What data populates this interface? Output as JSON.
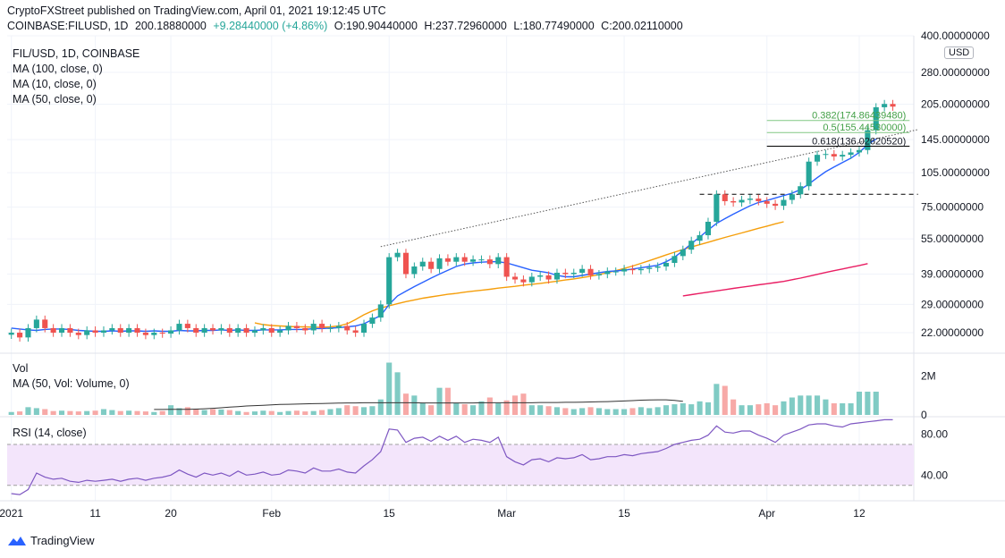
{
  "header": {
    "published": "CryptoFXStreet published on TradingView.com, April 01, 2021 19:12:45 UTC",
    "symbol_line": "COINBASE:FILUSD, 1D",
    "last": "200.18880000",
    "change": "+9.28440000 (+4.86%)",
    "open": "O:190.90440000",
    "high": "H:237.72960000",
    "low": "L:180.77490000",
    "close": "C:200.02110000"
  },
  "legend": {
    "title": "FIL/USD, 1D, COINBASE",
    "ma100": "MA (100, close, 0)",
    "ma10": "MA (10, close, 0)",
    "ma50": "MA (50, close, 0)",
    "vol": "Vol",
    "vol_ma": "MA (50, Vol: Volume, 0)",
    "rsi": "RSI (14, close)"
  },
  "currency": "USD",
  "brand": "TradingView",
  "colors": {
    "up": "#26a69a",
    "down": "#ef5350",
    "ma10": "#2962ff",
    "ma50": "#f59e0b",
    "ma100": "#e91e63",
    "rsi": "#7e57c2",
    "fib": "#81c784"
  },
  "chart_data": {
    "type": "candlestick",
    "title": "FIL/USD, 1D, COINBASE",
    "scale": "log",
    "ylim": [
      18,
      400
    ],
    "y_ticks": [
      "400.00000000",
      "280.00000000",
      "205.00000000",
      "145.00000000",
      "105.00000000",
      "75.00000000",
      "55.00000000",
      "39.00000000",
      "29.00000000",
      "22.00000000"
    ],
    "y_tick_values": [
      400,
      280,
      205,
      145,
      105,
      75,
      55,
      39,
      29,
      22
    ],
    "x_labels": [
      "2021",
      "11",
      "20",
      "Feb",
      "15",
      "Mar",
      "15",
      "Apr",
      "12"
    ],
    "x_label_days": [
      0,
      10,
      19,
      31,
      45,
      59,
      73,
      90,
      101
    ],
    "num_days": 108,
    "closes": [
      22,
      21,
      23,
      25,
      23,
      22,
      23,
      22,
      21.5,
      22.5,
      22,
      22.5,
      23,
      22,
      23,
      22,
      21.5,
      22,
      21.8,
      22.5,
      24,
      23,
      22,
      23,
      22.5,
      23,
      22,
      23,
      22,
      22.5,
      23,
      22,
      22.5,
      23.5,
      23,
      22.5,
      24,
      23,
      23,
      23.5,
      22.5,
      22,
      24,
      25.5,
      29,
      46,
      48,
      39,
      42,
      44,
      41,
      45.5,
      44,
      46,
      44,
      45,
      45,
      43,
      46,
      38,
      37,
      36,
      38,
      38.5,
      37,
      39.5,
      39,
      39.5,
      41,
      38.5,
      39,
      40,
      40,
      41,
      40.5,
      41,
      41.5,
      42,
      43.5,
      46.5,
      49.5,
      54,
      57,
      65,
      85,
      79.5,
      78.5,
      80.5,
      81.5,
      79.5,
      77.5,
      76,
      80.5,
      85,
      92,
      117,
      125,
      126,
      123,
      125,
      128,
      131,
      159,
      199,
      205.5,
      200.2
    ],
    "ma10_from_day": 0,
    "ma10": [
      23,
      22.8,
      22.6,
      22.5,
      22.7,
      22.8,
      22.8,
      22.7,
      22.5,
      22.4,
      22.3,
      22.3,
      22.4,
      22.3,
      22.4,
      22.4,
      22.3,
      22.4,
      22.3,
      22.3,
      22.5,
      22.4,
      22.4,
      22.5,
      22.5,
      22.6,
      22.5,
      22.6,
      22.5,
      22.5,
      22.6,
      22.6,
      22.6,
      22.7,
      22.7,
      22.7,
      22.9,
      22.9,
      23,
      23.1,
      23.3,
      23.5,
      24,
      25,
      26,
      29,
      31.5,
      33,
      34.5,
      36,
      37.5,
      39,
      40.5,
      42,
      43,
      43.5,
      43.8,
      44,
      44,
      43.5,
      42.5,
      41.5,
      40.5,
      40,
      39.5,
      38.5,
      38,
      38,
      38.5,
      39,
      39.5,
      40,
      40.2,
      40.5,
      41,
      41.5,
      42,
      42.5,
      44,
      46,
      49,
      52.5,
      56,
      60,
      64,
      67,
      70,
      73,
      76,
      78.5,
      80,
      82,
      84,
      86,
      89,
      94,
      100,
      106,
      111,
      116,
      121,
      128,
      138,
      146
    ],
    "ma50_from_day": 29,
    "ma50": [
      24.2,
      23.8,
      23.6,
      23.5,
      23.4,
      23.3,
      23.3,
      23.2,
      23.2,
      23.3,
      23.5,
      24,
      25,
      26.2,
      27.2,
      28,
      28.6,
      29.2,
      29.8,
      30.3,
      30.8,
      31.2,
      31.6,
      32,
      32.3,
      32.7,
      33,
      33.3,
      33.6,
      34,
      34.3,
      34.6,
      35,
      35.3,
      35.6,
      36,
      36.4,
      36.8,
      37.2,
      37.7,
      38.2,
      38.8,
      39.5,
      40.3,
      41.2,
      42.2,
      43.3,
      44.5,
      45.7,
      47,
      48.3,
      49.6,
      50.8,
      52,
      53.2,
      54.5,
      55.8,
      57,
      58.3,
      59.6,
      61,
      62.3,
      63.7,
      65
    ],
    "ma100_from_day": 80,
    "ma100": [
      31.5,
      31.9,
      32.3,
      32.7,
      33.1,
      33.5,
      33.9,
      34.3,
      34.7,
      35.1,
      35.5,
      35.9,
      36.3,
      36.9,
      37.5,
      38.2,
      38.9,
      39.6,
      40.3,
      41,
      41.7,
      42.4,
      43.2
    ],
    "fibonacci": [
      {
        "label": "0.382(174.86439480)",
        "value": 174.86
      },
      {
        "label": "0.5(155.44530000)",
        "value": 155.45
      },
      {
        "label": "0.618(136.02620520)",
        "value": 136.03
      }
    ],
    "trendline": {
      "from": {
        "day": 44,
        "value": 51
      },
      "to": {
        "day": 108,
        "value": 160
      }
    },
    "support_line": {
      "from_day": 82,
      "to_day": 108,
      "value": 85
    },
    "volume": {
      "label": "Vol",
      "ticks": [
        "2M",
        "0"
      ],
      "tick_values": [
        2,
        0
      ],
      "unit": "M",
      "values": [
        0.15,
        0.18,
        0.4,
        0.35,
        0.3,
        0.2,
        0.22,
        0.2,
        0.18,
        0.2,
        0.22,
        0.3,
        0.25,
        0.2,
        0.22,
        0.2,
        0.18,
        0.15,
        0.2,
        0.5,
        0.35,
        0.4,
        0.3,
        0.25,
        0.3,
        0.28,
        0.25,
        0.2,
        0.15,
        0.18,
        0.22,
        0.2,
        0.15,
        0.2,
        0.22,
        0.18,
        0.2,
        0.25,
        0.3,
        0.35,
        0.5,
        0.45,
        0.4,
        0.45,
        0.8,
        2.7,
        2.2,
        1.1,
        1.0,
        0.6,
        0.5,
        1.4,
        1.4,
        0.6,
        0.55,
        0.5,
        0.7,
        0.9,
        0.6,
        0.75,
        1.0,
        1.1,
        0.5,
        0.5,
        0.45,
        0.4,
        0.35,
        0.3,
        0.35,
        0.4,
        0.35,
        0.3,
        0.3,
        0.3,
        0.35,
        0.4,
        0.35,
        0.4,
        0.5,
        0.55,
        0.6,
        0.55,
        0.7,
        0.65,
        1.6,
        1.5,
        0.8,
        0.5,
        0.5,
        0.55,
        0.6,
        0.5,
        0.7,
        0.9,
        1.0,
        1.0,
        1.0,
        0.8,
        0.6,
        0.6,
        0.6,
        1.2,
        1.2,
        1.2
      ],
      "ma50": [
        0.28,
        0.28,
        0.29,
        0.29,
        0.29,
        0.3,
        0.32,
        0.34,
        0.37,
        0.4,
        0.43,
        0.46,
        0.48,
        0.5,
        0.52,
        0.54,
        0.55,
        0.56,
        0.57,
        0.58,
        0.59,
        0.6,
        0.61,
        0.62,
        0.62,
        0.63,
        0.63,
        0.63,
        0.63,
        0.63,
        0.63,
        0.63,
        0.62,
        0.62,
        0.62,
        0.62,
        0.62,
        0.62,
        0.62,
        0.63,
        0.63,
        0.63,
        0.63,
        0.63,
        0.63,
        0.63,
        0.64,
        0.64,
        0.64,
        0.65,
        0.65,
        0.66,
        0.67,
        0.68,
        0.69,
        0.7,
        0.72,
        0.74,
        0.76,
        0.77,
        0.78,
        0.78,
        0.75,
        0.7
      ]
    },
    "rsi": {
      "label": "RSI (14, close)",
      "ticks": [
        "80.00",
        "40.00"
      ],
      "tick_values": [
        80,
        40
      ],
      "band": [
        30,
        70
      ],
      "ylim": [
        15,
        97
      ],
      "values": [
        22,
        21,
        26,
        42,
        38,
        36,
        37,
        34,
        33,
        35,
        34,
        35,
        36,
        34,
        36,
        37,
        35,
        37,
        38,
        40,
        45,
        41,
        38,
        42,
        40,
        42,
        39,
        44,
        40,
        41,
        43,
        40,
        41,
        45,
        44,
        42,
        47,
        44,
        44,
        46,
        43,
        42,
        49,
        55,
        63,
        85,
        84,
        72,
        76,
        77,
        73,
        78,
        74,
        78,
        72,
        75,
        74,
        72,
        77,
        58,
        53,
        50,
        55,
        56,
        53,
        57,
        56,
        57,
        60,
        55,
        56,
        58,
        58,
        60,
        59,
        61,
        62,
        63,
        66,
        70,
        72,
        74,
        75,
        79,
        88,
        82,
        81,
        83,
        83,
        79,
        76,
        72,
        79,
        82,
        85,
        89,
        90,
        90,
        88,
        87,
        90,
        91,
        92,
        93,
        94,
        94
      ]
    }
  }
}
